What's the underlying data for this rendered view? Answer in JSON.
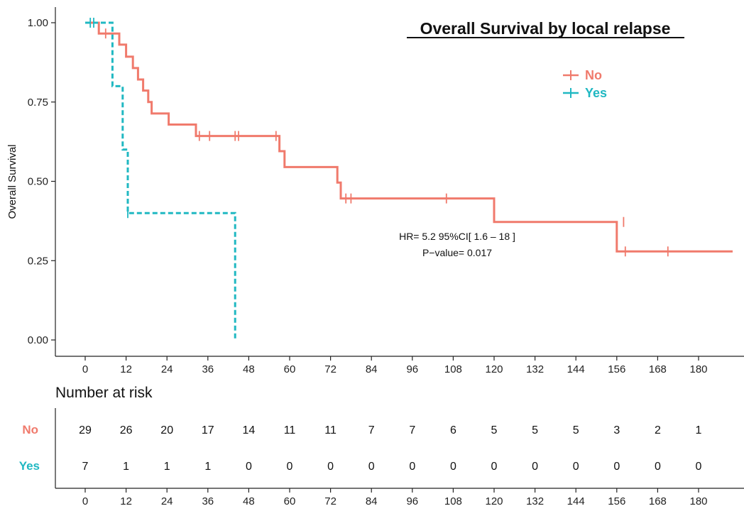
{
  "chart_data": {
    "type": "line",
    "title": "Overall Survival by local relapse",
    "xlabel": "",
    "ylabel": "Overall Survival",
    "xlim": [
      0,
      186
    ],
    "ylim": [
      0,
      1
    ],
    "x_ticks": [
      0,
      12,
      24,
      36,
      48,
      60,
      72,
      84,
      96,
      108,
      120,
      132,
      144,
      156,
      168,
      180
    ],
    "y_ticks": [
      "0.00",
      "0.25",
      "0.50",
      "0.75",
      "1.00"
    ],
    "grid": false,
    "legend_placement": "top-right",
    "series": [
      {
        "name": "No",
        "color": "#F07A6C",
        "line_style": "solid",
        "steps": [
          [
            0,
            1.0
          ],
          [
            4,
            0.966
          ],
          [
            10,
            0.931
          ],
          [
            12,
            0.893
          ],
          [
            14,
            0.857
          ],
          [
            15.5,
            0.821
          ],
          [
            17,
            0.786
          ],
          [
            18.5,
            0.75
          ],
          [
            19.5,
            0.714
          ],
          [
            24.5,
            0.679
          ],
          [
            32.5,
            0.643
          ],
          [
            57,
            0.595
          ],
          [
            58.5,
            0.545
          ],
          [
            74,
            0.496
          ],
          [
            75,
            0.446
          ],
          [
            120,
            0.372
          ],
          [
            156,
            0.279
          ],
          [
            190,
            0.279
          ]
        ],
        "censored": [
          [
            6,
            0.966
          ],
          [
            33.5,
            0.643
          ],
          [
            36.5,
            0.643
          ],
          [
            44,
            0.643
          ],
          [
            45,
            0.643
          ],
          [
            56,
            0.643
          ],
          [
            76.5,
            0.446
          ],
          [
            78,
            0.446
          ],
          [
            106,
            0.446
          ],
          [
            158,
            0.372
          ],
          [
            158.5,
            0.279
          ],
          [
            171,
            0.279
          ]
        ]
      },
      {
        "name": "Yes",
        "color": "#20B8C2",
        "line_style": "dashed",
        "steps": [
          [
            0,
            1.0
          ],
          [
            8,
            0.8
          ],
          [
            11,
            0.6
          ],
          [
            12.5,
            0.4
          ],
          [
            44,
            0.4
          ],
          [
            44,
            0.0
          ]
        ],
        "censored": [
          [
            1.5,
            1.0
          ],
          [
            2.5,
            1.0
          ],
          [
            12.5,
            0.4
          ]
        ]
      }
    ],
    "annotations": [
      "HR= 5.2  95%CI[ 1.6 – 18 ]",
      "P−value= 0.017"
    ]
  },
  "risk_table": {
    "title": "Number at risk",
    "groups": [
      {
        "name": "No",
        "color": "#F07A6C",
        "values": [
          29,
          26,
          20,
          17,
          14,
          11,
          11,
          7,
          7,
          6,
          5,
          5,
          5,
          3,
          2,
          1
        ]
      },
      {
        "name": "Yes",
        "color": "#20B8C2",
        "values": [
          7,
          1,
          1,
          1,
          0,
          0,
          0,
          0,
          0,
          0,
          0,
          0,
          0,
          0,
          0,
          0
        ]
      }
    ],
    "x_ticks": [
      0,
      12,
      24,
      36,
      48,
      60,
      72,
      84,
      96,
      108,
      120,
      132,
      144,
      156,
      168,
      180
    ]
  }
}
